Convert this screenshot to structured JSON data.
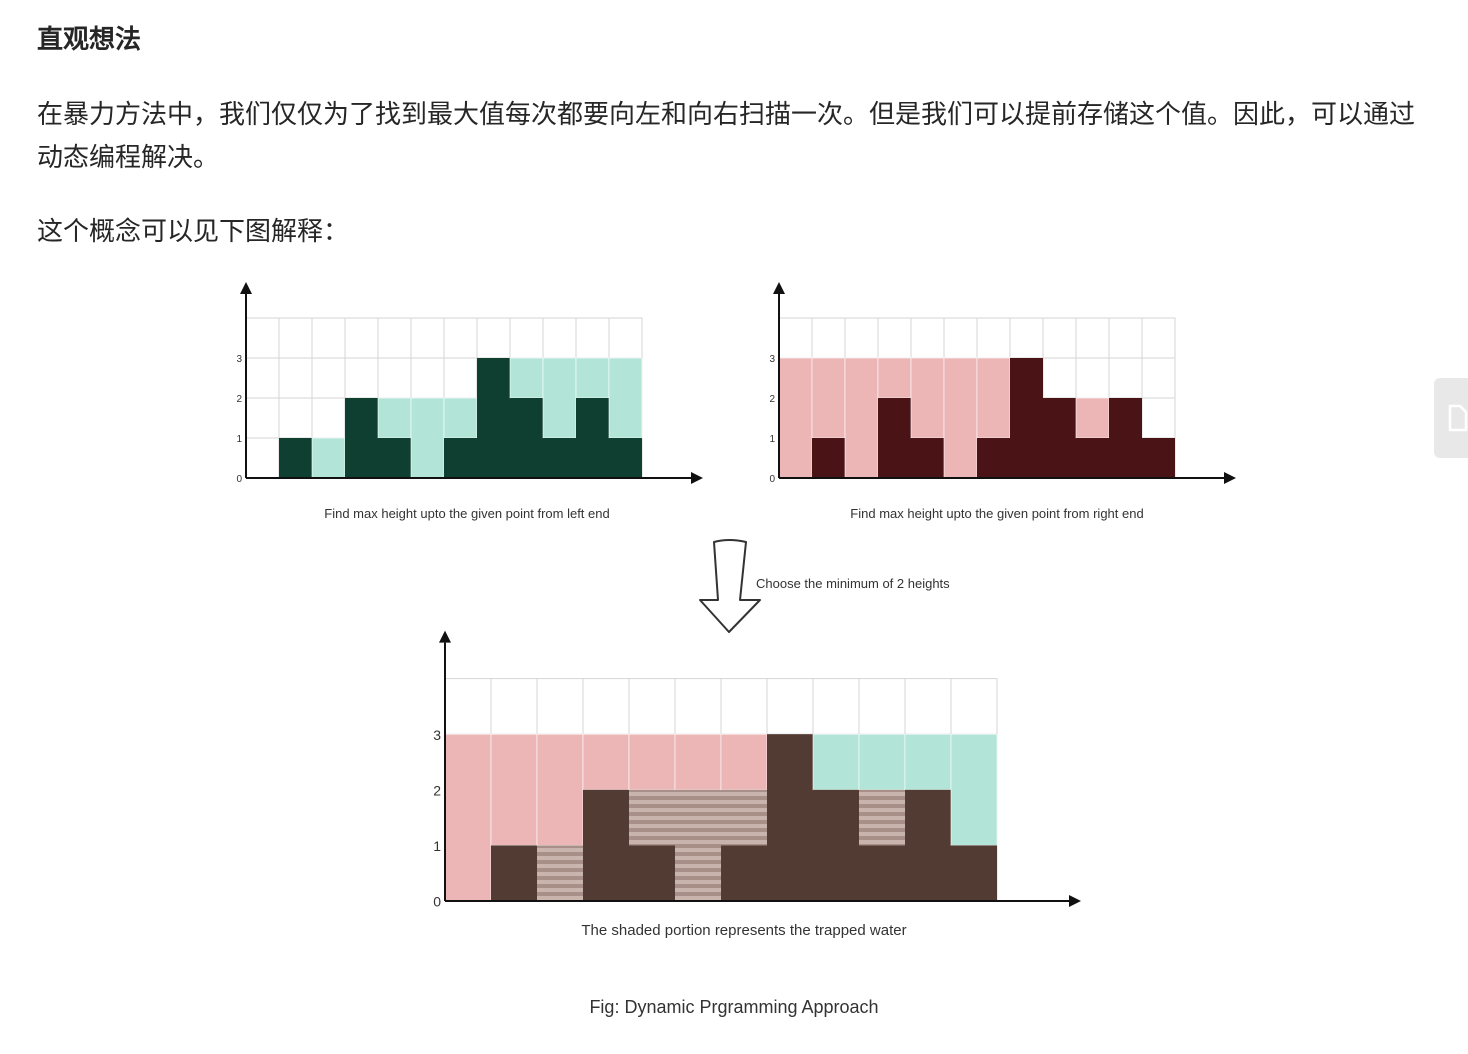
{
  "article": {
    "heading": "直观想法",
    "paragraph1": "在暴力方法中，我们仅仅为了找到最大值每次都要向左和向右扫描一次。但是我们可以提前存储这个值。因此，可以通过动态编程解决。",
    "paragraph2": "这个概念可以见下图解释："
  },
  "figure": {
    "left_panel": {
      "caption": "Find max height upto the given point from left end",
      "heights": [
        0,
        1,
        0,
        2,
        1,
        0,
        1,
        3,
        2,
        1,
        2,
        1
      ],
      "left_max": [
        0,
        1,
        1,
        2,
        2,
        2,
        2,
        3,
        3,
        3,
        3,
        3
      ],
      "y_ticks": [
        "0",
        "1",
        "2",
        "3"
      ],
      "bar_color": "#0e3f31",
      "fill_color": "#b2e5d7"
    },
    "right_panel": {
      "caption": "Find max height upto the given point from right end",
      "heights": [
        0,
        1,
        0,
        2,
        1,
        0,
        1,
        3,
        2,
        1,
        2,
        1
      ],
      "right_max": [
        3,
        3,
        3,
        3,
        3,
        3,
        3,
        3,
        2,
        2,
        2,
        1
      ],
      "y_ticks": [
        "0",
        "1",
        "2",
        "3"
      ],
      "bar_color": "#4a1416",
      "fill_color": "#ecb6b6"
    },
    "arrow_label": "Choose the minimum of 2 heights",
    "bottom_panel": {
      "caption": "The shaded portion represents the trapped water",
      "heights": [
        0,
        1,
        0,
        2,
        1,
        0,
        1,
        3,
        2,
        1,
        2,
        1
      ],
      "left_max": [
        0,
        1,
        1,
        2,
        2,
        2,
        2,
        3,
        3,
        3,
        3,
        3
      ],
      "right_max": [
        3,
        3,
        3,
        3,
        3,
        3,
        3,
        3,
        2,
        2,
        2,
        1
      ],
      "y_ticks": [
        "0",
        "1",
        "2",
        "3"
      ],
      "bar_color": "#523b32",
      "left_fill_color": "#b2e5d7",
      "right_fill_color": "#ecb6b6",
      "water_color": "#a89088",
      "water_stripe_color": "#c8b4ac"
    },
    "figure_caption": "Fig: Dynamic Prgramming Approach"
  },
  "side_tab": {
    "icon": "document-icon"
  }
}
